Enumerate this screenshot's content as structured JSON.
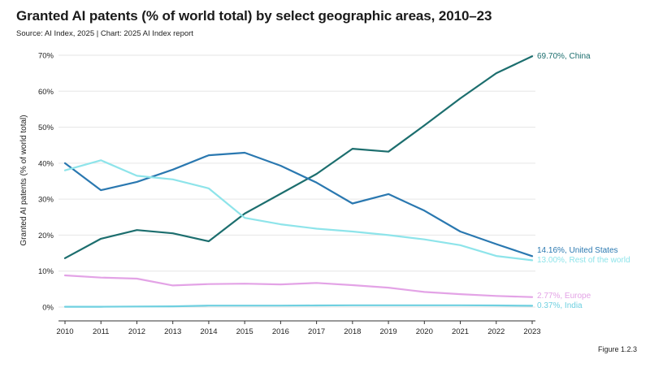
{
  "header": {
    "title": "Granted AI patents (% of world total) by select geographic areas, 2010–23",
    "subtitle": "Source: AI Index, 2025 | Chart: 2025 AI Index report"
  },
  "figure_label": "Figure 1.2.3",
  "chart_data": {
    "type": "line",
    "title": "Granted AI patents (% of world total) by select geographic areas, 2010–23",
    "xlabel": "",
    "ylabel": "Granted AI patents (% of world total)",
    "x": [
      2010,
      2011,
      2012,
      2013,
      2014,
      2015,
      2016,
      2017,
      2018,
      2019,
      2020,
      2021,
      2022,
      2023
    ],
    "ylim": [
      0,
      70
    ],
    "yticks": [
      0,
      10,
      20,
      30,
      40,
      50,
      60,
      70
    ],
    "ytick_labels": [
      "0%",
      "10%",
      "20%",
      "30%",
      "40%",
      "50%",
      "60%",
      "70%"
    ],
    "grid": "horizontal",
    "series": [
      {
        "key": "china",
        "values": [
          13.6,
          19.0,
          21.4,
          20.5,
          18.3,
          26.0,
          31.5,
          37.0,
          44.0,
          43.2,
          50.5,
          58.0,
          65.0,
          69.7
        ],
        "color": "#1c6e6e",
        "end_label": "69.70%, China"
      },
      {
        "key": "us",
        "values": [
          40.0,
          32.5,
          34.8,
          38.2,
          42.2,
          42.9,
          39.3,
          34.6,
          28.8,
          31.4,
          26.8,
          21.0,
          17.5,
          14.16
        ],
        "color": "#2a78b0",
        "end_label": "14.16%, United States"
      },
      {
        "key": "row",
        "values": [
          38.0,
          40.8,
          36.5,
          35.5,
          33.0,
          24.8,
          23.0,
          21.8,
          21.0,
          20.0,
          18.8,
          17.2,
          14.2,
          13.0
        ],
        "color": "#8ee4ea",
        "end_label": "13.00%, Rest of the world"
      },
      {
        "key": "europe",
        "values": [
          8.8,
          8.2,
          7.9,
          6.0,
          6.4,
          6.5,
          6.3,
          6.7,
          6.1,
          5.4,
          4.2,
          3.6,
          3.1,
          2.77
        ],
        "color": "#e3a3e6",
        "end_label": "2.77%, Europe"
      },
      {
        "key": "india",
        "values": [
          0.1,
          0.1,
          0.15,
          0.2,
          0.4,
          0.4,
          0.4,
          0.45,
          0.5,
          0.5,
          0.5,
          0.5,
          0.45,
          0.37
        ],
        "color": "#6fd0e0",
        "end_label": "0.37%, India"
      }
    ]
  }
}
